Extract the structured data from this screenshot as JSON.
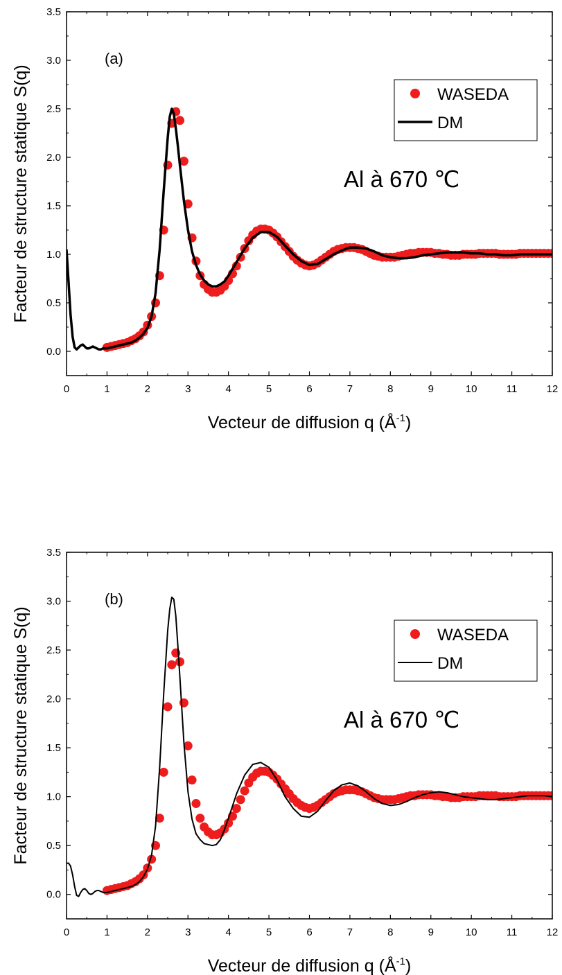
{
  "x_axis_label_main": "Vecteur de diffusion q (Å",
  "x_axis_label_sup": "-1",
  "x_axis_label_end": ")",
  "y_axis_label": "Facteur de structure statique S(q)",
  "x_ticks": [
    "0",
    "1",
    "2",
    "3",
    "4",
    "5",
    "6",
    "7",
    "8",
    "9",
    "10",
    "11",
    "12"
  ],
  "y_ticks": [
    "0.0",
    "0.5",
    "1.0",
    "1.5",
    "2.0",
    "2.5",
    "3.0",
    "3.5"
  ],
  "colors": {
    "waseda": "#ee1c1c",
    "dm": "#000000"
  },
  "chart_data": [
    {
      "type": "scatter",
      "panel_label": "(a)",
      "annotation": "Al à 670 ℃",
      "xlim": [
        0,
        12
      ],
      "ylim": [
        -0.25,
        3.5
      ],
      "legend": {
        "position": "top-right",
        "entries": [
          "WASEDA",
          "DM"
        ]
      },
      "series": [
        {
          "name": "WASEDA",
          "marker": "circle",
          "x": [
            1.0,
            1.1,
            1.2,
            1.3,
            1.4,
            1.5,
            1.6,
            1.7,
            1.8,
            1.9,
            2.0,
            2.1,
            2.2,
            2.3,
            2.4,
            2.5,
            2.6,
            2.7,
            2.8,
            2.9,
            3.0,
            3.1,
            3.2,
            3.3,
            3.4,
            3.5,
            3.6,
            3.7,
            3.8,
            3.9,
            4.0,
            4.1,
            4.2,
            4.3,
            4.4,
            4.5,
            4.6,
            4.7,
            4.8,
            4.9,
            5.0,
            5.1,
            5.2,
            5.3,
            5.4,
            5.5,
            5.6,
            5.7,
            5.8,
            5.9,
            6.0,
            6.1,
            6.2,
            6.3,
            6.4,
            6.5,
            6.6,
            6.7,
            6.8,
            6.9,
            7.0,
            7.1,
            7.2,
            7.3,
            7.4,
            7.5,
            7.6,
            7.7,
            7.8,
            7.9,
            8.0,
            8.1,
            8.2,
            8.3,
            8.4,
            8.5,
            8.6,
            8.7,
            8.8,
            8.9,
            9.0,
            9.1,
            9.2,
            9.3,
            9.4,
            9.5,
            9.6,
            9.7,
            9.8,
            9.9,
            10.0,
            10.1,
            10.2,
            10.3,
            10.4,
            10.5,
            10.6,
            10.7,
            10.8,
            10.9,
            11.0,
            11.1,
            11.2,
            11.3,
            11.4,
            11.5,
            11.6,
            11.7,
            11.8,
            11.9,
            12.0
          ],
          "y": [
            0.04,
            0.05,
            0.06,
            0.07,
            0.08,
            0.09,
            0.11,
            0.13,
            0.16,
            0.2,
            0.27,
            0.36,
            0.5,
            0.78,
            1.25,
            1.92,
            2.35,
            2.47,
            2.38,
            1.96,
            1.52,
            1.17,
            0.93,
            0.78,
            0.69,
            0.64,
            0.61,
            0.61,
            0.63,
            0.67,
            0.73,
            0.8,
            0.88,
            0.97,
            1.06,
            1.14,
            1.2,
            1.24,
            1.26,
            1.26,
            1.25,
            1.22,
            1.18,
            1.13,
            1.08,
            1.03,
            0.98,
            0.94,
            0.91,
            0.89,
            0.88,
            0.89,
            0.91,
            0.94,
            0.97,
            1.0,
            1.03,
            1.05,
            1.06,
            1.07,
            1.07,
            1.07,
            1.06,
            1.05,
            1.03,
            1.01,
            0.99,
            0.98,
            0.97,
            0.97,
            0.97,
            0.97,
            0.98,
            0.99,
            1.0,
            1.01,
            1.01,
            1.02,
            1.02,
            1.02,
            1.02,
            1.01,
            1.01,
            1.0,
            1.0,
            0.99,
            0.99,
            0.99,
            1.0,
            1.0,
            1.0,
            1.0,
            1.01,
            1.01,
            1.01,
            1.01,
            1.01,
            1.0,
            1.0,
            1.0,
            1.0,
            1.0,
            1.01,
            1.01,
            1.01,
            1.01,
            1.01,
            1.01,
            1.01,
            1.01,
            1.01
          ]
        },
        {
          "name": "DM",
          "line_width": 3.5,
          "x": [
            0.0,
            0.05,
            0.1,
            0.15,
            0.2,
            0.25,
            0.3,
            0.35,
            0.4,
            0.45,
            0.5,
            0.55,
            0.6,
            0.65,
            0.7,
            0.75,
            0.8,
            0.85,
            0.9,
            0.95,
            1.0,
            1.1,
            1.2,
            1.3,
            1.4,
            1.5,
            1.6,
            1.7,
            1.8,
            1.9,
            2.0,
            2.1,
            2.2,
            2.3,
            2.4,
            2.5,
            2.55,
            2.6,
            2.65,
            2.7,
            2.75,
            2.8,
            2.9,
            3.0,
            3.1,
            3.2,
            3.3,
            3.4,
            3.5,
            3.6,
            3.7,
            3.8,
            3.9,
            4.0,
            4.2,
            4.4,
            4.6,
            4.8,
            5.0,
            5.2,
            5.4,
            5.6,
            5.8,
            6.0,
            6.2,
            6.4,
            6.6,
            6.8,
            7.0,
            7.2,
            7.4,
            7.6,
            7.8,
            8.0,
            8.2,
            8.4,
            8.6,
            8.8,
            9.0,
            9.2,
            9.4,
            9.6,
            9.8,
            10.0,
            10.2,
            10.4,
            10.6,
            10.8,
            11.0,
            11.2,
            11.4,
            11.6,
            11.8,
            12.0
          ],
          "y": [
            1.05,
            0.72,
            0.38,
            0.15,
            0.04,
            0.02,
            0.04,
            0.06,
            0.07,
            0.05,
            0.03,
            0.03,
            0.04,
            0.05,
            0.04,
            0.03,
            0.02,
            0.02,
            0.03,
            0.03,
            0.03,
            0.04,
            0.05,
            0.06,
            0.07,
            0.08,
            0.09,
            0.11,
            0.14,
            0.18,
            0.24,
            0.36,
            0.6,
            1.05,
            1.65,
            2.2,
            2.42,
            2.5,
            2.45,
            2.3,
            2.12,
            1.92,
            1.55,
            1.25,
            1.03,
            0.89,
            0.79,
            0.73,
            0.69,
            0.67,
            0.67,
            0.69,
            0.72,
            0.78,
            0.92,
            1.06,
            1.17,
            1.23,
            1.23,
            1.18,
            1.09,
            1.0,
            0.93,
            0.89,
            0.9,
            0.95,
            1.0,
            1.04,
            1.07,
            1.07,
            1.06,
            1.03,
            0.99,
            0.97,
            0.96,
            0.96,
            0.97,
            0.99,
            1.0,
            1.01,
            1.02,
            1.02,
            1.02,
            1.01,
            1.01,
            1.0,
            1.0,
            0.99,
            0.99,
            1.0,
            1.0,
            1.0,
            1.0,
            1.0
          ]
        }
      ]
    },
    {
      "type": "scatter",
      "panel_label": "(b)",
      "annotation": "Al à 670 ℃",
      "xlim": [
        0,
        12
      ],
      "ylim": [
        -0.25,
        3.5
      ],
      "legend": {
        "position": "top-right",
        "entries": [
          "WASEDA",
          "DM"
        ]
      },
      "series": [
        {
          "name": "WASEDA",
          "marker": "circle",
          "x": [
            1.0,
            1.1,
            1.2,
            1.3,
            1.4,
            1.5,
            1.6,
            1.7,
            1.8,
            1.9,
            2.0,
            2.1,
            2.2,
            2.3,
            2.4,
            2.5,
            2.6,
            2.7,
            2.8,
            2.9,
            3.0,
            3.1,
            3.2,
            3.3,
            3.4,
            3.5,
            3.6,
            3.7,
            3.8,
            3.9,
            4.0,
            4.1,
            4.2,
            4.3,
            4.4,
            4.5,
            4.6,
            4.7,
            4.8,
            4.9,
            5.0,
            5.1,
            5.2,
            5.3,
            5.4,
            5.5,
            5.6,
            5.7,
            5.8,
            5.9,
            6.0,
            6.1,
            6.2,
            6.3,
            6.4,
            6.5,
            6.6,
            6.7,
            6.8,
            6.9,
            7.0,
            7.1,
            7.2,
            7.3,
            7.4,
            7.5,
            7.6,
            7.7,
            7.8,
            7.9,
            8.0,
            8.1,
            8.2,
            8.3,
            8.4,
            8.5,
            8.6,
            8.7,
            8.8,
            8.9,
            9.0,
            9.1,
            9.2,
            9.3,
            9.4,
            9.5,
            9.6,
            9.7,
            9.8,
            9.9,
            10.0,
            10.1,
            10.2,
            10.3,
            10.4,
            10.5,
            10.6,
            10.7,
            10.8,
            10.9,
            11.0,
            11.1,
            11.2,
            11.3,
            11.4,
            11.5,
            11.6,
            11.7,
            11.8,
            11.9,
            12.0
          ],
          "y": [
            0.04,
            0.05,
            0.06,
            0.07,
            0.08,
            0.09,
            0.11,
            0.13,
            0.16,
            0.2,
            0.27,
            0.36,
            0.5,
            0.78,
            1.25,
            1.92,
            2.35,
            2.47,
            2.38,
            1.96,
            1.52,
            1.17,
            0.93,
            0.78,
            0.69,
            0.64,
            0.61,
            0.61,
            0.63,
            0.67,
            0.73,
            0.8,
            0.88,
            0.97,
            1.06,
            1.14,
            1.2,
            1.24,
            1.26,
            1.26,
            1.25,
            1.22,
            1.18,
            1.13,
            1.08,
            1.03,
            0.98,
            0.94,
            0.91,
            0.89,
            0.88,
            0.89,
            0.91,
            0.94,
            0.97,
            1.0,
            1.03,
            1.05,
            1.06,
            1.07,
            1.07,
            1.07,
            1.06,
            1.05,
            1.03,
            1.01,
            0.99,
            0.98,
            0.97,
            0.97,
            0.97,
            0.97,
            0.98,
            0.99,
            1.0,
            1.01,
            1.01,
            1.02,
            1.02,
            1.02,
            1.02,
            1.01,
            1.01,
            1.0,
            1.0,
            0.99,
            0.99,
            0.99,
            1.0,
            1.0,
            1.0,
            1.0,
            1.01,
            1.01,
            1.01,
            1.01,
            1.01,
            1.0,
            1.0,
            1.0,
            1.0,
            1.0,
            1.01,
            1.01,
            1.01,
            1.01,
            1.01,
            1.01,
            1.01,
            1.01,
            1.01
          ]
        },
        {
          "name": "DM",
          "line_width": 2,
          "x": [
            0.0,
            0.05,
            0.1,
            0.15,
            0.2,
            0.25,
            0.3,
            0.35,
            0.4,
            0.45,
            0.5,
            0.55,
            0.6,
            0.65,
            0.7,
            0.75,
            0.8,
            0.85,
            0.9,
            0.95,
            1.0,
            1.1,
            1.2,
            1.3,
            1.4,
            1.5,
            1.6,
            1.7,
            1.8,
            1.9,
            2.0,
            2.1,
            2.2,
            2.3,
            2.4,
            2.5,
            2.55,
            2.6,
            2.65,
            2.7,
            2.75,
            2.8,
            2.9,
            3.0,
            3.1,
            3.2,
            3.3,
            3.4,
            3.5,
            3.6,
            3.7,
            3.8,
            3.9,
            4.0,
            4.2,
            4.4,
            4.6,
            4.8,
            5.0,
            5.2,
            5.4,
            5.6,
            5.8,
            6.0,
            6.2,
            6.4,
            6.6,
            6.8,
            7.0,
            7.2,
            7.4,
            7.6,
            7.8,
            8.0,
            8.2,
            8.4,
            8.6,
            8.8,
            9.0,
            9.2,
            9.4,
            9.6,
            9.8,
            10.0,
            10.2,
            10.4,
            10.6,
            10.8,
            11.0,
            11.2,
            11.4,
            11.6,
            11.8,
            12.0
          ],
          "y": [
            0.32,
            0.32,
            0.29,
            0.2,
            0.08,
            -0.01,
            -0.02,
            0.02,
            0.05,
            0.06,
            0.04,
            0.01,
            0.0,
            0.01,
            0.03,
            0.04,
            0.04,
            0.03,
            0.02,
            0.02,
            0.02,
            0.03,
            0.04,
            0.05,
            0.06,
            0.07,
            0.08,
            0.1,
            0.13,
            0.18,
            0.26,
            0.4,
            0.7,
            1.3,
            2.05,
            2.7,
            2.92,
            3.04,
            3.02,
            2.85,
            2.55,
            2.22,
            1.55,
            1.05,
            0.77,
            0.62,
            0.56,
            0.52,
            0.51,
            0.5,
            0.51,
            0.56,
            0.66,
            0.78,
            1.03,
            1.22,
            1.33,
            1.35,
            1.3,
            1.17,
            1.0,
            0.88,
            0.8,
            0.79,
            0.85,
            0.96,
            1.06,
            1.12,
            1.14,
            1.11,
            1.05,
            0.98,
            0.93,
            0.91,
            0.92,
            0.95,
            0.99,
            1.02,
            1.04,
            1.05,
            1.04,
            1.02,
            1.0,
            0.99,
            0.98,
            0.97,
            0.97,
            0.98,
            0.99,
            1.0,
            1.01,
            1.01,
            1.01,
            1.0
          ]
        }
      ]
    }
  ]
}
